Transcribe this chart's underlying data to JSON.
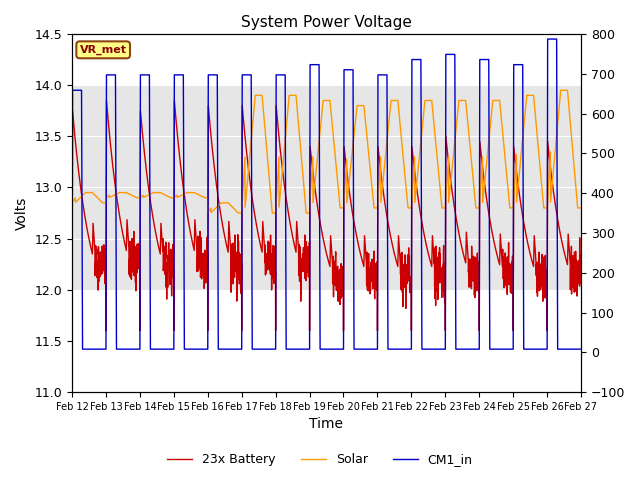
{
  "title": "System Power Voltage",
  "xlabel": "Time",
  "ylabel": "Volts",
  "ylim_left": [
    11.0,
    14.5
  ],
  "ylim_right": [
    -100,
    800
  ],
  "yticks_left": [
    11.0,
    11.5,
    12.0,
    12.5,
    13.0,
    13.5,
    14.0,
    14.5
  ],
  "yticks_right": [
    -100,
    0,
    100,
    200,
    300,
    400,
    500,
    600,
    700,
    800
  ],
  "xtick_labels": [
    "Feb 12",
    "Feb 13",
    "Feb 14",
    "Feb 15",
    "Feb 16",
    "Feb 17",
    "Feb 18",
    "Feb 19",
    "Feb 20",
    "Feb 21",
    "Feb 22",
    "Feb 23",
    "Feb 24",
    "Feb 25",
    "Feb 26",
    "Feb 27"
  ],
  "shaded_band": [
    12.0,
    14.0
  ],
  "annotation_text": "VR_met",
  "colors": {
    "battery": "#cc0000",
    "solar": "#ff9900",
    "cm1_in": "#0000cc"
  },
  "legend_labels": [
    "23x Battery",
    "Solar",
    "CM1_in"
  ],
  "cm1_highs": [
    13.95,
    14.1,
    14.1,
    14.1,
    14.1,
    14.1,
    14.1,
    14.2,
    14.15,
    14.1,
    14.25,
    14.3,
    14.25,
    14.2,
    14.45
  ],
  "batt_highs": [
    13.75,
    13.85,
    13.75,
    13.85,
    13.8,
    13.8,
    13.8,
    13.4,
    13.4,
    13.4,
    13.4,
    13.5,
    13.45,
    13.4,
    13.45
  ],
  "solar_lows": [
    12.85,
    12.9,
    12.9,
    12.9,
    12.75,
    12.75,
    12.75,
    12.8,
    12.8,
    12.8,
    12.8,
    12.8,
    12.8,
    12.8,
    12.8
  ],
  "solar_highs": [
    12.95,
    12.95,
    12.95,
    12.95,
    12.85,
    13.9,
    13.9,
    13.85,
    13.8,
    13.85,
    13.85,
    13.85,
    13.85,
    13.9,
    13.95
  ],
  "cm1_low": 11.42,
  "batt_low": 11.6,
  "pts_per_day": 200
}
